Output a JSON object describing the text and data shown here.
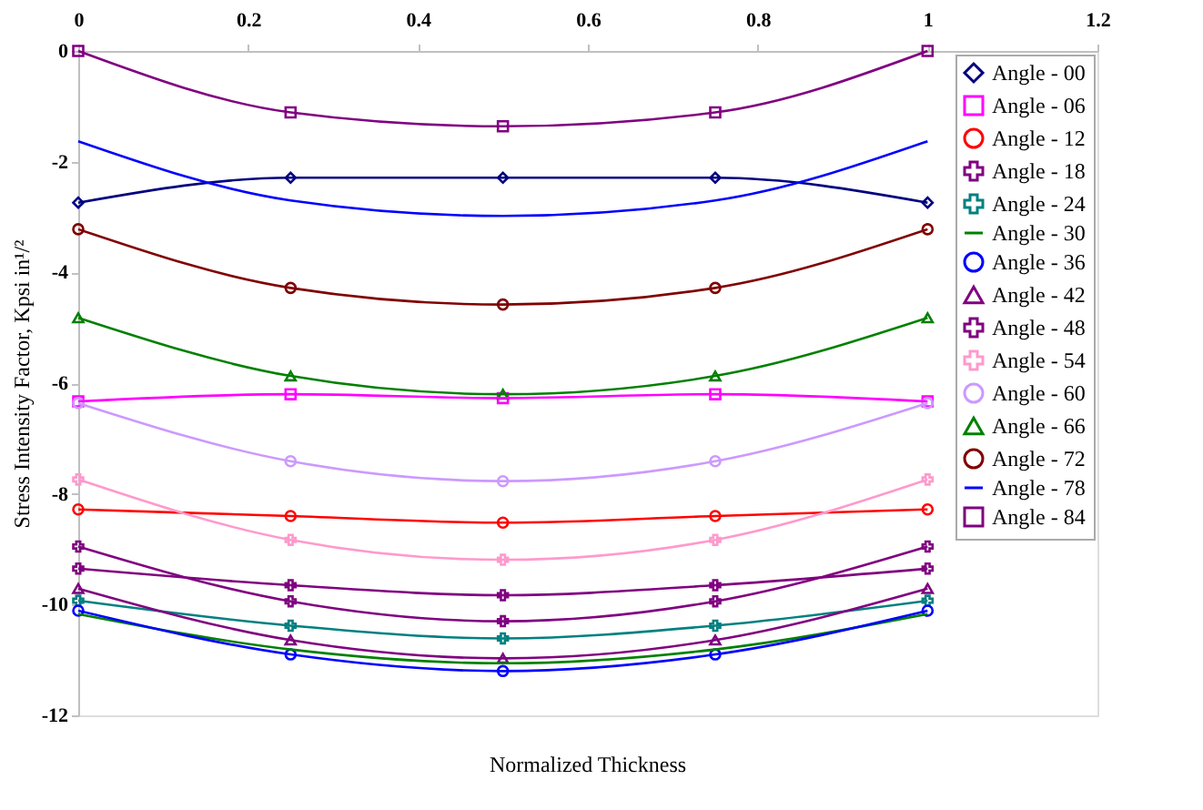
{
  "chart_data": {
    "type": "line",
    "xlabel": "Normalized Thickness",
    "ylabel": "Stress Intensity Factor, Kpsi in¹/²",
    "x": [
      0,
      0.25,
      0.5,
      0.75,
      1
    ],
    "xlim": [
      0,
      1.2
    ],
    "xticks": [
      {
        "value": 0,
        "label": "0"
      },
      0.2,
      0.4,
      0.6,
      0.8,
      {
        "value": 1,
        "label": "1"
      },
      1.2
    ],
    "ylim": [
      -12,
      0
    ],
    "yticks": [
      0,
      -2,
      -4,
      -6,
      -8,
      -10,
      -12
    ],
    "grid": false,
    "legend": "top right",
    "series": [
      {
        "name": "Angle - 00",
        "color": "#000080",
        "marker": "diamond",
        "values": [
          -2.74,
          -2.29,
          -2.29,
          -2.29,
          -2.74
        ]
      },
      {
        "name": "Angle - 06",
        "color": "#ff00ff",
        "marker": "square",
        "values": [
          -6.33,
          -6.2,
          -6.27,
          -6.2,
          -6.33
        ]
      },
      {
        "name": "Angle - 12",
        "color": "#ff0000",
        "marker": "circle",
        "values": [
          -8.28,
          -8.4,
          -8.52,
          -8.4,
          -8.28
        ]
      },
      {
        "name": "Angle - 18",
        "color": "#800080",
        "marker": "cross",
        "values": [
          -9.35,
          -9.65,
          -9.83,
          -9.65,
          -9.35
        ]
      },
      {
        "name": "Angle - 24",
        "color": "#008080",
        "marker": "cross",
        "values": [
          -9.93,
          -10.38,
          -10.61,
          -10.38,
          -9.93
        ]
      },
      {
        "name": "Angle - 30",
        "color": "#008000",
        "marker": "none",
        "values": [
          -10.17,
          -10.81,
          -11.06,
          -10.81,
          -10.17
        ]
      },
      {
        "name": "Angle - 36",
        "color": "#0000ff",
        "marker": "circle",
        "values": [
          -10.11,
          -10.9,
          -11.2,
          -10.9,
          -10.11
        ]
      },
      {
        "name": "Angle - 42",
        "color": "#800080",
        "marker": "triangle",
        "values": [
          -9.71,
          -10.64,
          -10.97,
          -10.64,
          -9.71
        ]
      },
      {
        "name": "Angle - 48",
        "color": "#800080",
        "marker": "cross",
        "values": [
          -8.95,
          -9.94,
          -10.3,
          -9.94,
          -8.95
        ]
      },
      {
        "name": "Angle - 54",
        "color": "#ff99cc",
        "marker": "cross",
        "values": [
          -7.74,
          -8.83,
          -9.19,
          -8.83,
          -7.74
        ]
      },
      {
        "name": "Angle - 60",
        "color": "#cc99ff",
        "marker": "circle",
        "values": [
          -6.36,
          -7.41,
          -7.77,
          -7.41,
          -6.36
        ]
      },
      {
        "name": "Angle - 66",
        "color": "#008000",
        "marker": "triangle",
        "values": [
          -4.82,
          -5.87,
          -6.2,
          -5.87,
          -4.82
        ]
      },
      {
        "name": "Angle - 72",
        "color": "#800000",
        "marker": "circle",
        "values": [
          -3.22,
          -4.28,
          -4.58,
          -4.28,
          -3.22
        ]
      },
      {
        "name": "Angle - 78",
        "color": "#0000ff",
        "marker": "none",
        "values": [
          -1.63,
          -2.7,
          -2.98,
          -2.7,
          -1.63
        ]
      },
      {
        "name": "Angle - 84",
        "color": "#800080",
        "marker": "square",
        "values": [
          0,
          -1.11,
          -1.36,
          -1.11,
          0
        ]
      }
    ]
  }
}
